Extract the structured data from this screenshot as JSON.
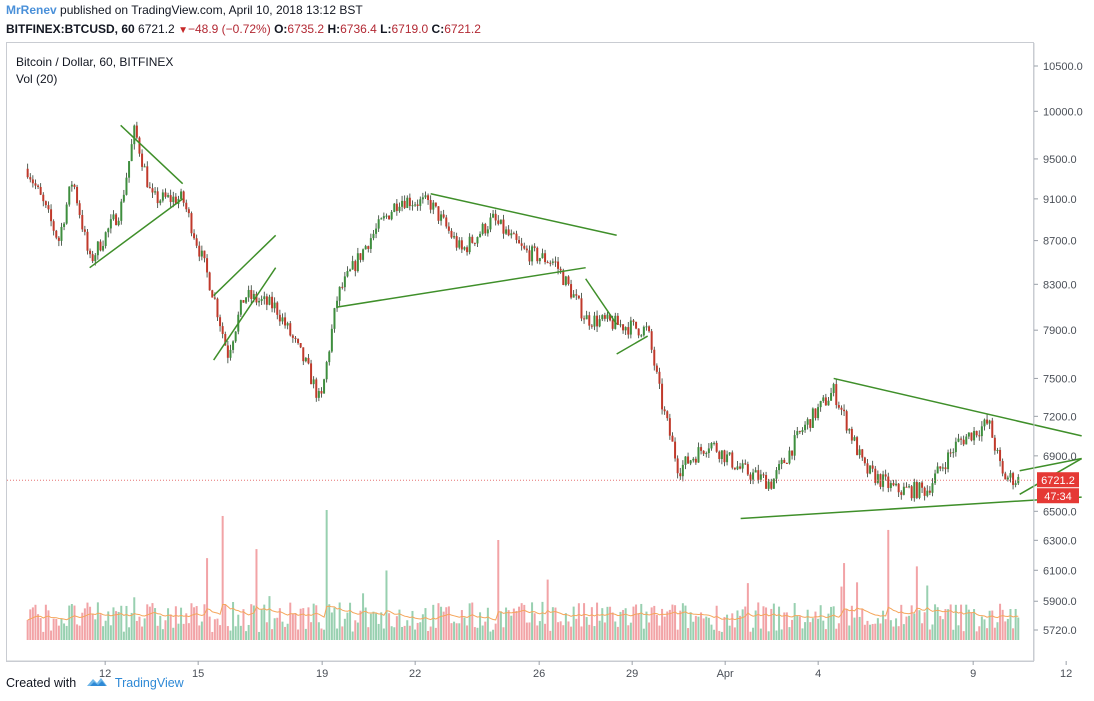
{
  "header": {
    "author": "MrRenev",
    "published": "published on TradingView.com, April 10, 2018 13:12 BST",
    "symbol": "BITFINEX:BTCUSD, 60",
    "last": "6721.2",
    "change": "−48.9 (−0.72%)",
    "o_label": "O:",
    "o": "6735.2",
    "h_label": "H:",
    "h": "6736.4",
    "l_label": "L:",
    "l": "6719.0",
    "c_label": "C:",
    "c": "6721.2"
  },
  "legend": {
    "title": "Bitcoin / Dollar, 60, BITFINEX",
    "volume": "Vol (20)"
  },
  "price_tag": "6721.2",
  "time_tag": "47:34",
  "footer": {
    "created": "Created with",
    "brand": "TradingView"
  },
  "colors": {
    "up": "#3e8e3e",
    "down": "#c0392b",
    "vol_up": "#98d0b0",
    "vol_down": "#f2a3a6",
    "vol_ma": "#f5a65b",
    "trendline": "#3f8f2a",
    "price_line": "#e57373"
  },
  "chart_data": {
    "type": "candlestick",
    "title": "Bitcoin / Dollar, 60, BITFINEX",
    "y_axis_ticks": [
      "10500.0",
      "10000.0",
      "9500.0",
      "9100.0",
      "8700.0",
      "8300.0",
      "7900.0",
      "7500.0",
      "7200.0",
      "6900.0",
      "6500.0",
      "6300.0",
      "6100.0",
      "5900.0",
      "5720.0"
    ],
    "y_axis_scale": "log",
    "x_axis_ticks": [
      "12",
      "15",
      "19",
      "22",
      "26",
      "29",
      "Apr",
      "4",
      "9",
      "12"
    ],
    "x_axis_dates": [
      "2018-03-12",
      "2018-03-15",
      "2018-03-19",
      "2018-03-22",
      "2018-03-26",
      "2018-03-29",
      "2018-04-01",
      "2018-04-04",
      "2018-04-09",
      "2018-04-12"
    ],
    "price_path": [
      {
        "date": "2018-03-09",
        "price": 9400
      },
      {
        "date": "2018-03-10",
        "price": 8700
      },
      {
        "date": "2018-03-10",
        "price": 9300
      },
      {
        "date": "2018-03-11",
        "price": 8500
      },
      {
        "date": "2018-03-12",
        "price": 9000
      },
      {
        "date": "2018-03-12",
        "price": 9800
      },
      {
        "date": "2018-03-13",
        "price": 9100
      },
      {
        "date": "2018-03-14",
        "price": 9100
      },
      {
        "date": "2018-03-15",
        "price": 8200
      },
      {
        "date": "2018-03-15",
        "price": 7700
      },
      {
        "date": "2018-03-16",
        "price": 8200
      },
      {
        "date": "2018-03-17",
        "price": 8100
      },
      {
        "date": "2018-03-18",
        "price": 7600
      },
      {
        "date": "2018-03-18",
        "price": 7300
      },
      {
        "date": "2018-03-19",
        "price": 8200
      },
      {
        "date": "2018-03-20",
        "price": 8700
      },
      {
        "date": "2018-03-21",
        "price": 9100
      },
      {
        "date": "2018-03-22",
        "price": 9050
      },
      {
        "date": "2018-03-23",
        "price": 8600
      },
      {
        "date": "2018-03-24",
        "price": 8900
      },
      {
        "date": "2018-03-25",
        "price": 8600
      },
      {
        "date": "2018-03-26",
        "price": 8500
      },
      {
        "date": "2018-03-27",
        "price": 8000
      },
      {
        "date": "2018-03-28",
        "price": 7950
      },
      {
        "date": "2018-03-29",
        "price": 7900
      },
      {
        "date": "2018-03-29",
        "price": 7300
      },
      {
        "date": "2018-03-30",
        "price": 6800
      },
      {
        "date": "2018-03-31",
        "price": 7000
      },
      {
        "date": "2018-04-01",
        "price": 6800
      },
      {
        "date": "2018-04-02",
        "price": 6700
      },
      {
        "date": "2018-04-03",
        "price": 7100
      },
      {
        "date": "2018-04-04",
        "price": 7400
      },
      {
        "date": "2018-04-05",
        "price": 6800
      },
      {
        "date": "2018-04-06",
        "price": 6650
      },
      {
        "date": "2018-04-07",
        "price": 6650
      },
      {
        "date": "2018-04-08",
        "price": 7000
      },
      {
        "date": "2018-04-09",
        "price": 7150
      },
      {
        "date": "2018-04-09",
        "price": 6750
      },
      {
        "date": "2018-04-10",
        "price": 6721
      }
    ],
    "trendlines": [
      {
        "p1": {
          "date": "2018-03-11",
          "price": 8450
        },
        "p2": {
          "date": "2018-03-14",
          "price": 9100
        }
      },
      {
        "p1": {
          "date": "2018-03-12",
          "price": 9850
        },
        "p2": {
          "date": "2018-03-14",
          "price": 9250
        }
      },
      {
        "p1": {
          "date": "2018-03-15",
          "price": 7650
        },
        "p2": {
          "date": "2018-03-17",
          "price": 8450
        }
      },
      {
        "p1": {
          "date": "2018-03-15",
          "price": 8200
        },
        "p2": {
          "date": "2018-03-17",
          "price": 8750
        }
      },
      {
        "p1": {
          "date": "2018-03-19",
          "price": 8100
        },
        "p2": {
          "date": "2018-03-27",
          "price": 8450
        }
      },
      {
        "p1": {
          "date": "2018-03-22",
          "price": 9150
        },
        "p2": {
          "date": "2018-03-28",
          "price": 8750
        }
      },
      {
        "p1": {
          "date": "2018-03-27",
          "price": 8350
        },
        "p2": {
          "date": "2018-03-28",
          "price": 7950
        }
      },
      {
        "p1": {
          "date": "2018-03-28",
          "price": 7700
        },
        "p2": {
          "date": "2018-03-29",
          "price": 7850
        }
      },
      {
        "p1": {
          "date": "2018-04-01",
          "price": 6450
        },
        "p2": {
          "date": "2018-04-12",
          "price": 6600
        }
      },
      {
        "p1": {
          "date": "2018-04-04",
          "price": 7500
        },
        "p2": {
          "date": "2018-04-12",
          "price": 7050
        }
      },
      {
        "p1": {
          "date": "2018-04-10",
          "price": 6620
        },
        "p2": {
          "date": "2018-04-12",
          "price": 6880
        }
      },
      {
        "p1": {
          "date": "2018-04-10",
          "price": 6790
        },
        "p2": {
          "date": "2018-04-12",
          "price": 6880
        }
      }
    ],
    "last_price": 6721.2
  }
}
